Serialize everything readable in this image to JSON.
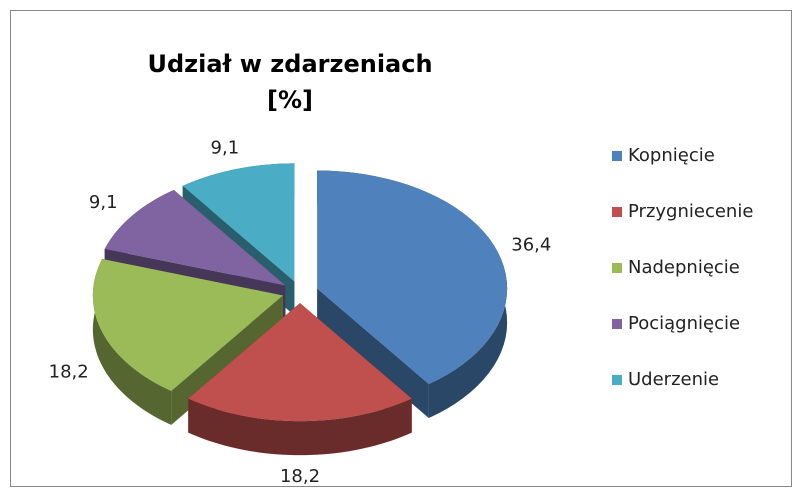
{
  "chart_data": {
    "type": "pie",
    "title": "Udział w zdarzeniach\n[%]",
    "categories": [
      "Kopnięcie",
      "Przygniecenie",
      "Nadepnięcie",
      "Pociągnięcie",
      "Uderzenie"
    ],
    "values": [
      36.4,
      18.2,
      18.2,
      9.1,
      9.1
    ],
    "value_labels": [
      "36,4",
      "18,2",
      "18,2",
      "9,1",
      "9,1"
    ],
    "colors": [
      "#4f81bd",
      "#c0504d",
      "#9bbb59",
      "#8064a2",
      "#4bacc6"
    ],
    "legend": "right"
  }
}
